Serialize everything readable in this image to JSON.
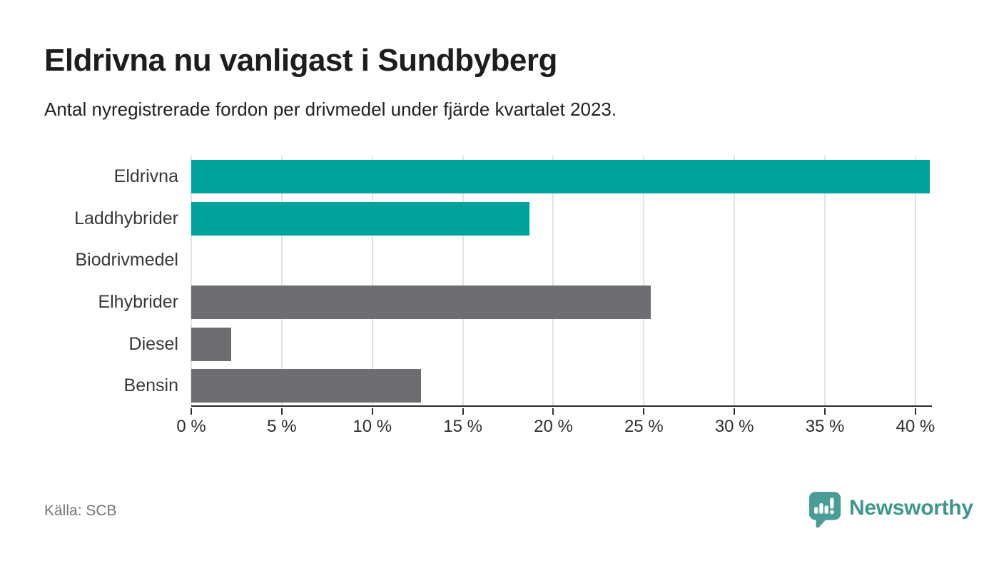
{
  "header": {
    "title": "Eldrivna nu vanligast i Sundbyberg",
    "subtitle": "Antal nyregistrerade fordon per drivmedel under fjärde kvartalet 2023."
  },
  "chart_data": {
    "type": "bar",
    "orientation": "horizontal",
    "title": "Eldrivna nu vanligast i Sundbyberg",
    "subtitle": "Antal nyregistrerade fordon per drivmedel under fjärde kvartalet 2023.",
    "categories": [
      "Eldrivna",
      "Laddhybrider",
      "Biodrivmedel",
      "Elhybrider",
      "Diesel",
      "Bensin"
    ],
    "values": [
      40.8,
      18.7,
      0,
      25.4,
      2.2,
      12.7
    ],
    "unit": "%",
    "bar_colors": [
      "#00a39b",
      "#00a39b",
      "#6e6d71",
      "#6e6d71",
      "#6e6d71",
      "#6e6d71"
    ],
    "accent_color": "#00a39b",
    "neutral_color": "#6e6d71",
    "xlim": [
      0,
      40.91
    ],
    "x_ticks": [
      {
        "value": 0,
        "label": "0 %"
      },
      {
        "value": 5,
        "label": "5 %"
      },
      {
        "value": 10,
        "label": "10 %"
      },
      {
        "value": 15,
        "label": "15 %"
      },
      {
        "value": 20,
        "label": "20 %"
      },
      {
        "value": 25,
        "label": "25 %"
      },
      {
        "value": 30,
        "label": "30 %"
      },
      {
        "value": 35,
        "label": "35 %"
      },
      {
        "value": 40,
        "label": "40 %"
      }
    ],
    "grid": true,
    "legend": false
  },
  "footer": {
    "source": "Källa: SCB",
    "brand": "Newsworthy",
    "brand_color": "#3f968f",
    "brand_mark_color": "#4a9d97"
  }
}
